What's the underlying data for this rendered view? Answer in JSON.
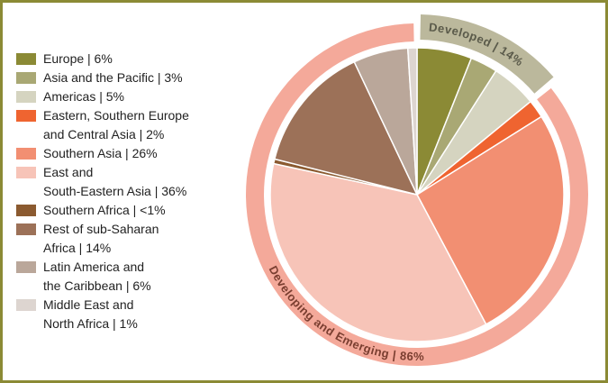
{
  "chart_data": {
    "type": "pie",
    "categories": [
      "Europe | 6%",
      "Asia and the Pacific | 3%",
      "Americas | 5%",
      "Eastern, Southern Europe\nand Central Asia | 2%",
      "Southern Asia | 26%",
      "East and\nSouth-Eastern Asia | 36%",
      "Southern Africa | <1%",
      "Rest of sub-Saharan\nAfrica | 14%",
      "Latin America and\nthe Caribbean | 6%",
      "Middle East and\nNorth Africa | 1%"
    ],
    "values": [
      6,
      3,
      5,
      2,
      26,
      36,
      0.5,
      14,
      6,
      1
    ],
    "colors": [
      "#8b8a35",
      "#a9a874",
      "#d5d4c0",
      "#ef6430",
      "#f28f72",
      "#f7c4b8",
      "#8b5a30",
      "#9c7158",
      "#baa79a",
      "#ddd5d0"
    ],
    "groups": [
      {
        "label": "Developed | 14%",
        "value": 14,
        "color": "#bbb89c"
      },
      {
        "label": "Developing and Emerging | 86%",
        "value": 86,
        "color": "#f4a99a"
      }
    ]
  }
}
